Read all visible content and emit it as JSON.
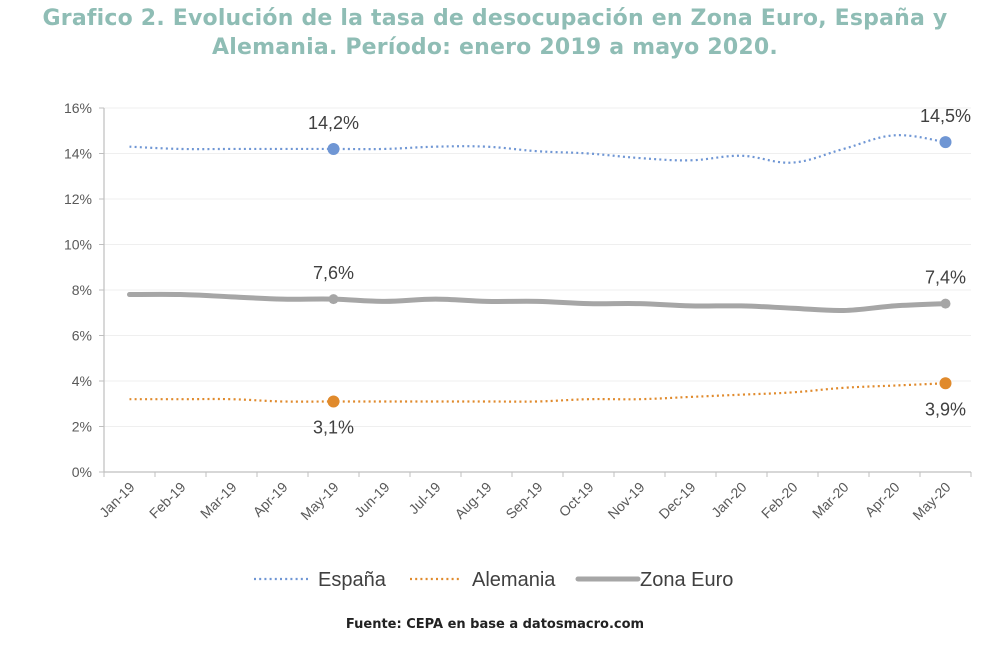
{
  "title": {
    "line1": "Grafico 2. Evolución de la tasa de desocupación en Zona Euro, España y",
    "line2": "Alemania. Período: enero 2019 a mayo 2020."
  },
  "source": "Fuente: CEPA en base a datosmacro.com",
  "colors": {
    "espana": "#6f96d4",
    "alemania": "#e08a2c",
    "zona_euro": "#a6a6a6",
    "title": "#8fbdb5",
    "axis": "#bfbfbf",
    "grid": "#efefef"
  },
  "chart_data": {
    "type": "line",
    "title": "Grafico 2. Evolución de la tasa de desocupación en Zona Euro, España y Alemania. Período: enero 2019 a mayo 2020.",
    "xlabel": "",
    "ylabel": "",
    "categories": [
      "Jan-19",
      "Feb-19",
      "Mar-19",
      "Apr-19",
      "May-19",
      "Jun-19",
      "Jul-19",
      "Aug-19",
      "Sep-19",
      "Oct-19",
      "Nov-19",
      "Dec-19",
      "Jan-20",
      "Feb-20",
      "Mar-20",
      "Apr-20",
      "May-20"
    ],
    "ylim": [
      0,
      16
    ],
    "yticks": [
      "0%",
      "2%",
      "4%",
      "6%",
      "8%",
      "10%",
      "12%",
      "14%",
      "16%"
    ],
    "ytick_values": [
      0,
      2,
      4,
      6,
      8,
      10,
      12,
      14,
      16
    ],
    "grid": true,
    "legend_position": "bottom",
    "series": [
      {
        "name": "España",
        "key": "espana",
        "style": "dotted",
        "values": [
          14.3,
          14.2,
          14.2,
          14.2,
          14.2,
          14.2,
          14.3,
          14.3,
          14.1,
          14.0,
          13.8,
          13.7,
          13.9,
          13.6,
          14.2,
          14.8,
          14.5
        ],
        "markers": [
          {
            "index": 4,
            "label": "14,2%",
            "position": "above"
          },
          {
            "index": 16,
            "label": "14,5%",
            "position": "above"
          }
        ]
      },
      {
        "name": "Alemania",
        "key": "alemania",
        "style": "dotted",
        "values": [
          3.2,
          3.2,
          3.2,
          3.1,
          3.1,
          3.1,
          3.1,
          3.1,
          3.1,
          3.2,
          3.2,
          3.3,
          3.4,
          3.5,
          3.7,
          3.8,
          3.9
        ],
        "markers": [
          {
            "index": 4,
            "label": "3,1%",
            "position": "below"
          },
          {
            "index": 16,
            "label": "3,9%",
            "position": "below"
          }
        ]
      },
      {
        "name": "Zona Euro",
        "key": "zona_euro",
        "style": "solid",
        "values": [
          7.8,
          7.8,
          7.7,
          7.6,
          7.6,
          7.5,
          7.6,
          7.5,
          7.5,
          7.4,
          7.4,
          7.3,
          7.3,
          7.2,
          7.1,
          7.3,
          7.4
        ],
        "markers": [
          {
            "index": 4,
            "label": "7,6%",
            "position": "above"
          },
          {
            "index": 16,
            "label": "7,4%",
            "position": "above"
          }
        ]
      }
    ]
  }
}
